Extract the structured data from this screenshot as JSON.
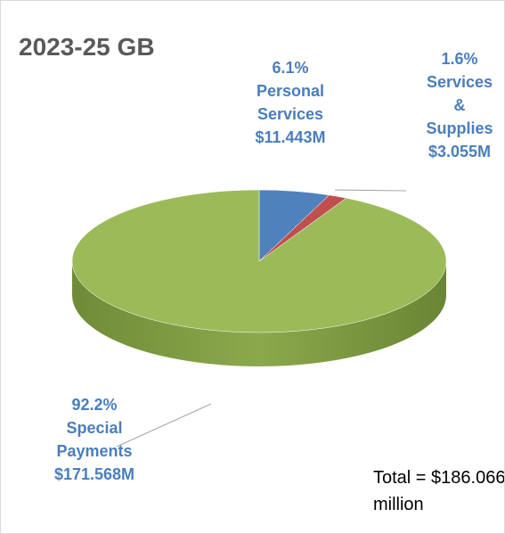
{
  "chart_data": {
    "type": "pie",
    "title": "2023-25 GB",
    "categories": [
      "Personal Services",
      "Services & Supplies",
      "Special Payments"
    ],
    "values": [
      6.1,
      1.6,
      92.2
    ],
    "value_labels": [
      "6.1%",
      "1.6%",
      "92.2%"
    ],
    "amounts": [
      11.443,
      3.055,
      171.568
    ],
    "amount_labels": [
      "$11.443M",
      "$3.055M",
      "$171.568M"
    ],
    "colors": [
      "#4f81bd",
      "#c0504d",
      "#9bbb59"
    ],
    "annotation": "Total = $186.066 million"
  }
}
